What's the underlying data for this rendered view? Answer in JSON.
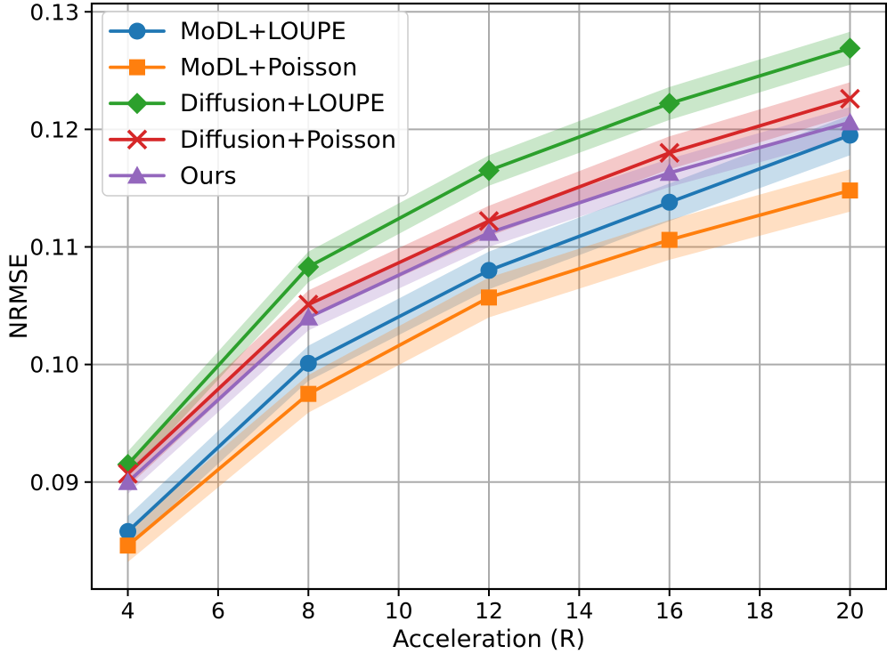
{
  "chart_data": {
    "type": "line",
    "title": "",
    "xlabel": "Acceleration (R)",
    "ylabel": "NRMSE",
    "x": [
      4,
      8,
      12,
      16,
      20
    ],
    "xlim": [
      3.2,
      20.8
    ],
    "ylim": [
      0.0809,
      0.1307
    ],
    "grid": true,
    "legend_position": "upper left",
    "xticks": [
      {
        "label": "4",
        "value": 4
      },
      {
        "label": "6",
        "value": 6
      },
      {
        "label": "8",
        "value": 8
      },
      {
        "label": "10",
        "value": 10
      },
      {
        "label": "12",
        "value": 12
      },
      {
        "label": "14",
        "value": 14
      },
      {
        "label": "16",
        "value": 16
      },
      {
        "label": "18",
        "value": 18
      },
      {
        "label": "20",
        "value": 20
      }
    ],
    "yticks": [
      {
        "label": "0.09",
        "value": 0.09
      },
      {
        "label": "0.10",
        "value": 0.1
      },
      {
        "label": "0.11",
        "value": 0.11
      },
      {
        "label": "0.12",
        "value": 0.12
      },
      {
        "label": "0.13",
        "value": 0.13
      }
    ],
    "series": [
      {
        "name": "MoDL+LOUPE",
        "color": "#1f77b4",
        "marker": "circle",
        "values": [
          0.0858,
          0.1001,
          0.108,
          0.1138,
          0.1195
        ],
        "band_halfwidth": [
          0.0013,
          0.0015,
          0.0016,
          0.0016,
          0.0017
        ]
      },
      {
        "name": "MoDL+Poisson",
        "color": "#ff7f0e",
        "marker": "square",
        "values": [
          0.0846,
          0.0975,
          0.1057,
          0.1106,
          0.1148
        ],
        "band_halfwidth": [
          0.0014,
          0.0016,
          0.0017,
          0.0017,
          0.0018
        ]
      },
      {
        "name": "Diffusion+LOUPE",
        "color": "#2ca02c",
        "marker": "diamond",
        "values": [
          0.0915,
          0.1083,
          0.1165,
          0.1222,
          0.1269
        ],
        "band_halfwidth": [
          0.0011,
          0.0013,
          0.0013,
          0.0014,
          0.0014
        ]
      },
      {
        "name": "Diffusion+Poisson",
        "color": "#d62728",
        "marker": "x",
        "values": [
          0.0907,
          0.1051,
          0.1122,
          0.118,
          0.1226
        ],
        "band_halfwidth": [
          0.0011,
          0.0012,
          0.0013,
          0.0014,
          0.0014
        ]
      },
      {
        "name": "Ours",
        "color": "#9467bd",
        "marker": "triangle",
        "values": [
          0.09,
          0.104,
          0.1112,
          0.1163,
          0.1206
        ],
        "band_halfwidth": [
          0.001,
          0.0011,
          0.0012,
          0.0012,
          0.0013
        ]
      }
    ],
    "style": {
      "grid_color": "#ababab",
      "axis_color": "#000000",
      "legend_border_color": "#cccccc",
      "background_color": "#ffffff",
      "band_opacity": 0.25
    }
  }
}
